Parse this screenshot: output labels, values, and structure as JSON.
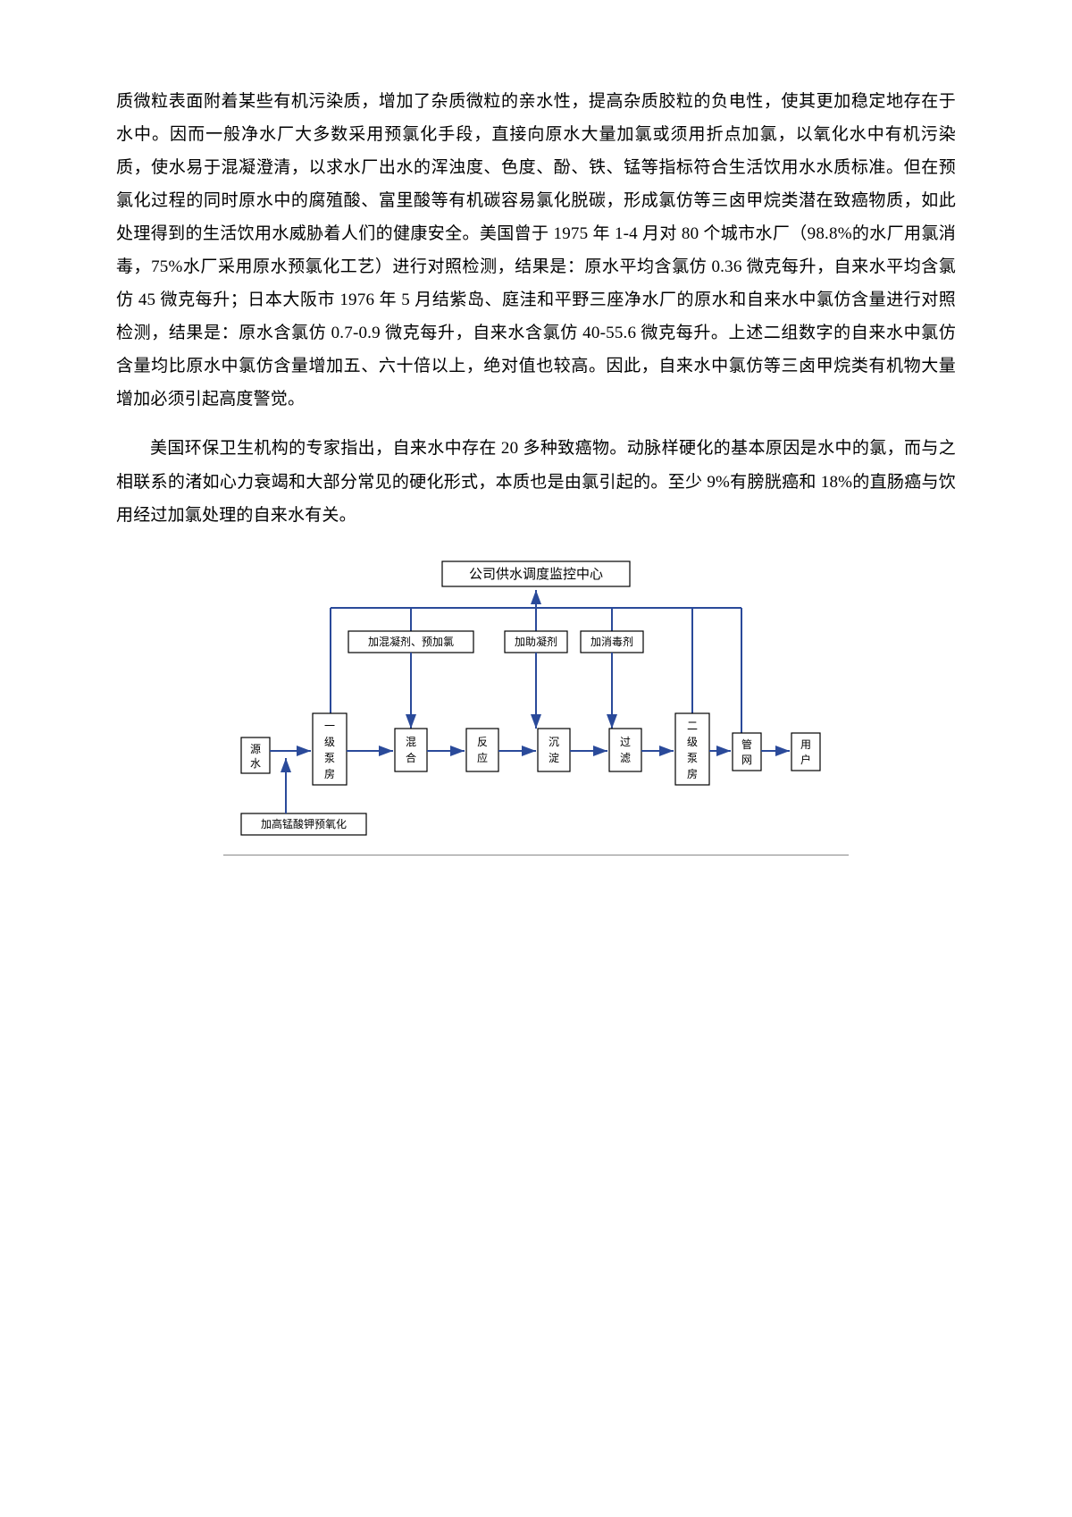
{
  "paragraphs": {
    "p1": "质微粒表面附着某些有机污染质，增加了杂质微粒的亲水性，提高杂质胶粒的负电性，使其更加稳定地存在于水中。因而一般净水厂大多数采用预氯化手段，直接向原水大量加氯或须用折点加氯，以氧化水中有机污染质，使水易于混凝澄清，以求水厂出水的浑浊度、色度、酚、铁、锰等指标符合生活饮用水水质标准。但在预氯化过程的同时原水中的腐殖酸、富里酸等有机碳容易氯化脱碳，形成氯仿等三卤甲烷类潜在致癌物质，如此处理得到的生活饮用水威胁着人们的健康安全。美国曾于 1975 年 1-4 月对 80 个城市水厂（98.8%的水厂用氯消毒，75%水厂采用原水预氯化工艺）进行对照检测，结果是：原水平均含氯仿 0.36 微克每升，自来水平均含氯仿 45 微克每升；日本大阪市 1976 年 5 月结紫岛、庭洼和平野三座净水厂的原水和自来水中氯仿含量进行对照检测，结果是：原水含氯仿 0.7-0.9 微克每升，自来水含氯仿 40-55.6 微克每升。上述二组数字的自来水中氯仿含量均比原水中氯仿含量增加五、六十倍以上，绝对值也较高。因此，自来水中氯仿等三卤甲烷类有机物大量增加必须引起高度警觉。",
    "p2": "美国环保卫生机构的专家指出，自来水中存在 20 多种致癌物。动脉样硬化的基本原因是水中的氯，而与之相联系的渚如心力衰竭和大部分常见的硬化形式，本质也是由氯引起的。至少 9%有膀胱癌和 18%的直肠癌与饮用经过加氯处理的自来水有关。"
  },
  "diagram": {
    "top": {
      "center": "公司供水调度监控中心"
    },
    "row2": {
      "b1": "加混凝剂、预加氯",
      "b2": "加助凝剂",
      "b3": "加消毒剂"
    },
    "flow": {
      "source": "源水",
      "pump1_a": "一",
      "pump1_b": "级",
      "pump1_c": "泵",
      "pump1_d": "房",
      "mix_a": "混",
      "mix_b": "合",
      "react_a": "反",
      "react_b": "应",
      "settle_a": "沉",
      "settle_b": "淀",
      "filter_a": "过",
      "filter_b": "滤",
      "pump2_a": "二",
      "pump2_b": "级",
      "pump2_c": "泵",
      "pump2_d": "房",
      "net_a": "管",
      "net_b": "网",
      "user_a": "用",
      "user_b": "户"
    },
    "bottom": {
      "kmno4": "加高锰酸钾预氧化"
    },
    "colors": {
      "arrow": "#2a4a9a",
      "box_stroke": "#000000",
      "box_fill": "#ffffff",
      "text": "#000000",
      "hr": "#888888"
    }
  }
}
